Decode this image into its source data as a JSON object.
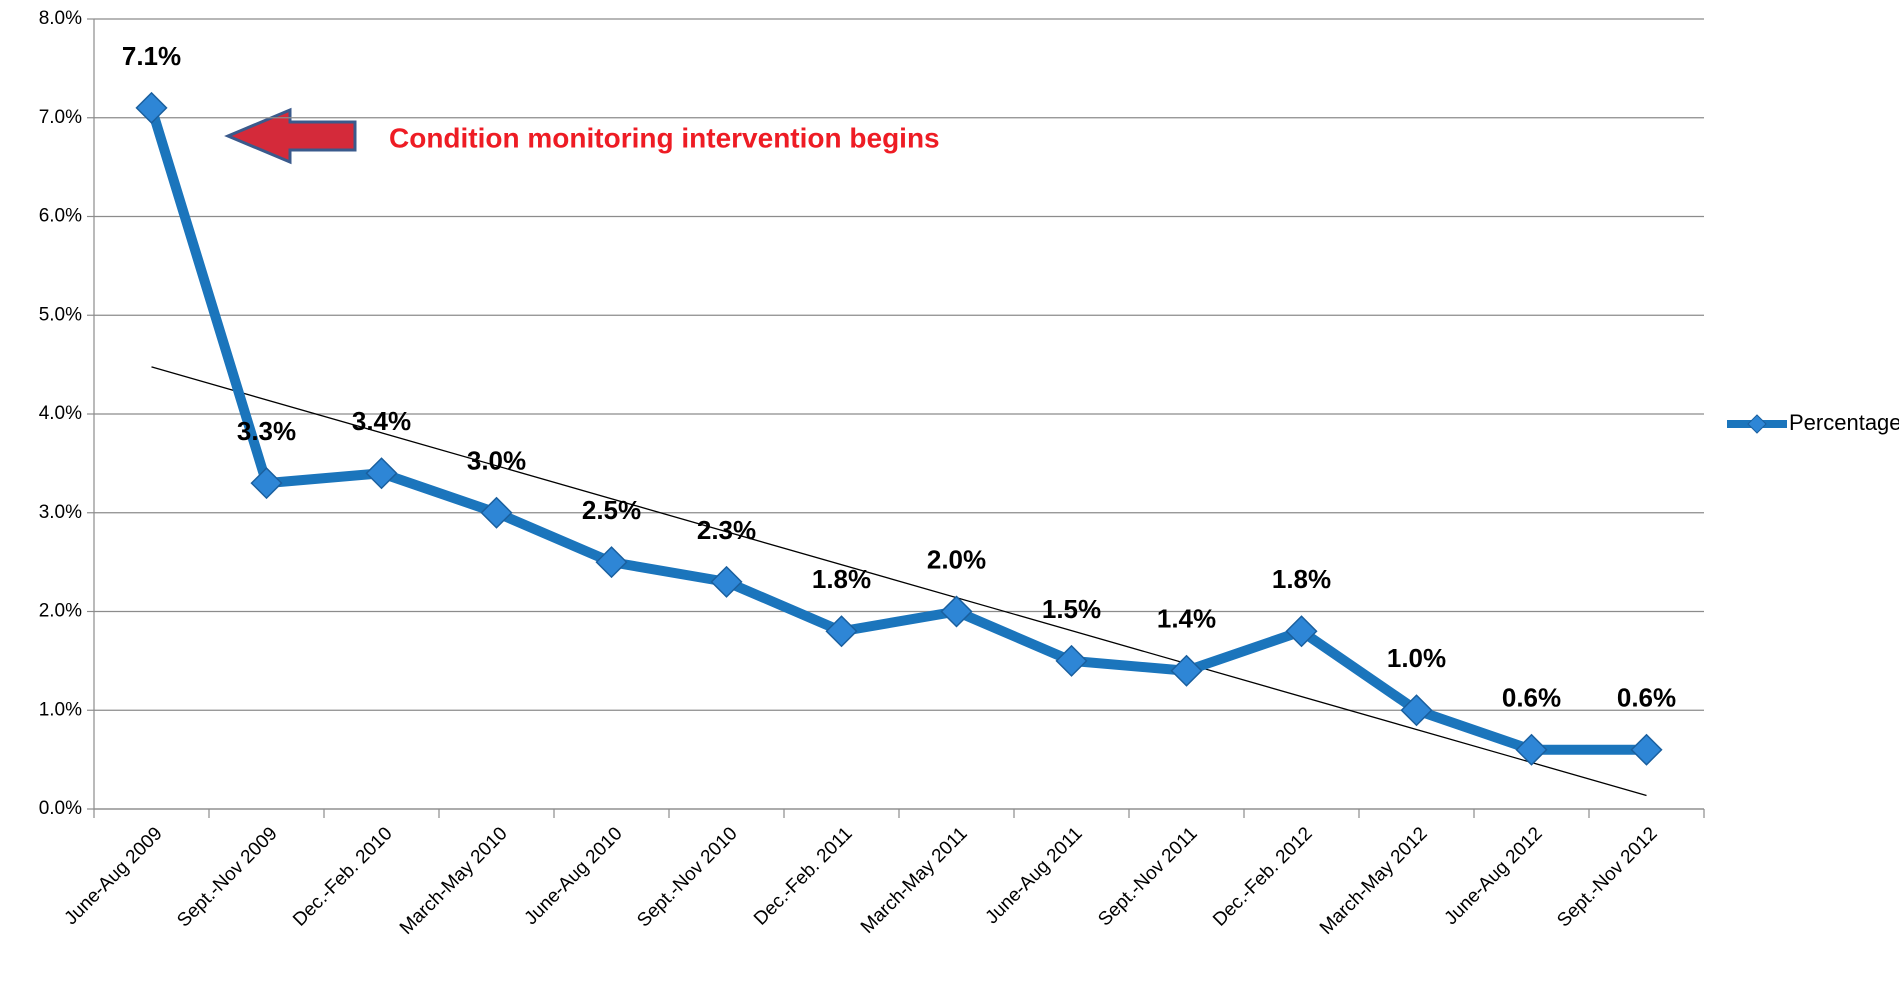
{
  "chart_data": {
    "type": "line",
    "categories": [
      "June-Aug 2009",
      "Sept.-Nov 2009",
      "Dec.-Feb. 2010",
      "March-May 2010",
      "June-Aug 2010",
      "Sept.-Nov 2010",
      "Dec.-Feb. 2011",
      "March-May 2011",
      "June-Aug 2011",
      "Sept.-Nov 2011",
      "Dec.-Feb. 2012",
      "March-May 2012",
      "June-Aug 2012",
      "Sept.-Nov 2012"
    ],
    "series": [
      {
        "name": "Percentage",
        "color": "#1b75bc",
        "values": [
          7.1,
          3.3,
          3.4,
          3.0,
          2.5,
          2.3,
          1.8,
          2.0,
          1.5,
          1.4,
          1.8,
          1.0,
          0.6,
          0.6
        ],
        "value_labels": [
          "7.1%",
          "3.3%",
          "3.4%",
          "3.0%",
          "2.5%",
          "2.3%",
          "1.8%",
          "2.0%",
          "1.5%",
          "1.4%",
          "1.8%",
          "1.0%",
          "0.6%",
          "0.6%"
        ]
      }
    ],
    "ylim": [
      0,
      8
    ],
    "yticks": [
      {
        "value": 0,
        "label": "0.0%"
      },
      {
        "value": 1,
        "label": "1.0%"
      },
      {
        "value": 2,
        "label": "2.0%"
      },
      {
        "value": 3,
        "label": "3.0%"
      },
      {
        "value": 4,
        "label": "4.0%"
      },
      {
        "value": 5,
        "label": "5.0%"
      },
      {
        "value": 6,
        "label": "6.0%"
      },
      {
        "value": 7,
        "label": "7.0%"
      },
      {
        "value": 8,
        "label": "8.0%"
      }
    ],
    "grid": true,
    "trendline": true,
    "legend": "right",
    "annotation": "Condition monitoring intervention begins"
  }
}
